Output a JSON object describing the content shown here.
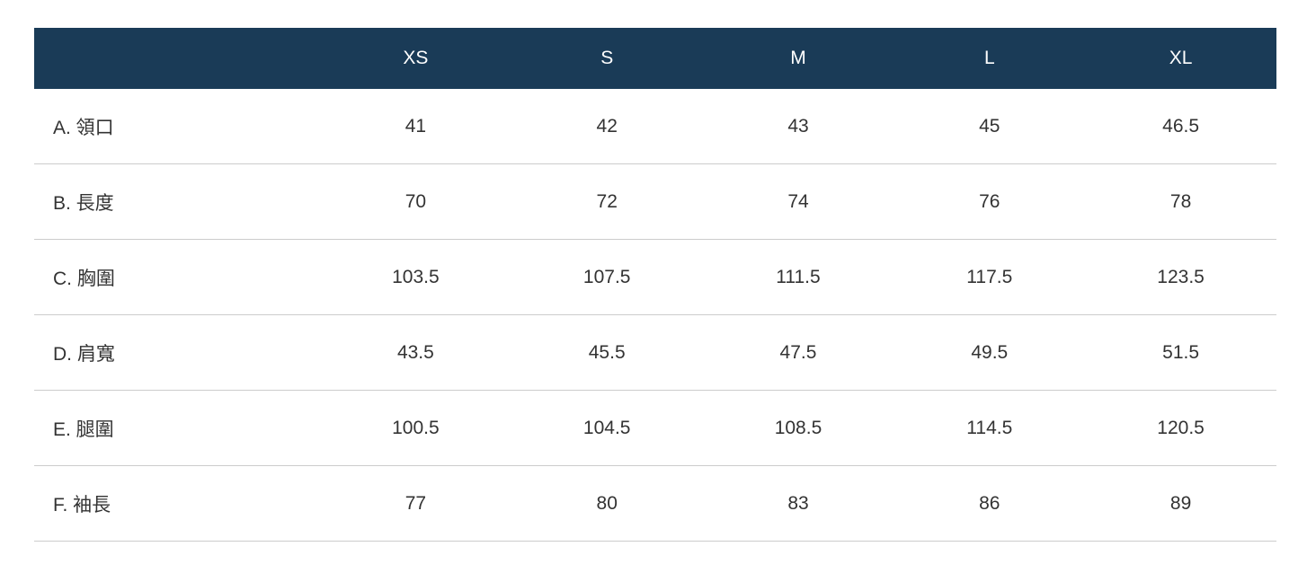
{
  "theme": {
    "header_bg": "#1a3b57",
    "header_text": "#ffffff",
    "body_text": "#333333",
    "divider": "#cccccc",
    "page_bg": "#ffffff"
  },
  "size_chart": {
    "header": {
      "label_column": "",
      "sizes": [
        "XS",
        "S",
        "M",
        "L",
        "XL"
      ]
    },
    "rows": [
      {
        "label": "A. 領口",
        "values": [
          "41",
          "42",
          "43",
          "45",
          "46.5"
        ]
      },
      {
        "label": "B. 長度",
        "values": [
          "70",
          "72",
          "74",
          "76",
          "78"
        ]
      },
      {
        "label": "C. 胸圍",
        "values": [
          "103.5",
          "107.5",
          "111.5",
          "117.5",
          "123.5"
        ]
      },
      {
        "label": "D. 肩寬",
        "values": [
          "43.5",
          "45.5",
          "47.5",
          "49.5",
          "51.5"
        ]
      },
      {
        "label": "E. 腿圍",
        "values": [
          "100.5",
          "104.5",
          "108.5",
          "114.5",
          "120.5"
        ]
      },
      {
        "label": "F. 袖長",
        "values": [
          "77",
          "80",
          "83",
          "86",
          "89"
        ]
      }
    ]
  },
  "chart_data": {
    "type": "table",
    "title": "",
    "columns": [
      "",
      "XS",
      "S",
      "M",
      "L",
      "XL"
    ],
    "rows": [
      [
        "A. 領口",
        41,
        42,
        43,
        45,
        46.5
      ],
      [
        "B. 長度",
        70,
        72,
        74,
        76,
        78
      ],
      [
        "C. 胸圍",
        103.5,
        107.5,
        111.5,
        117.5,
        123.5
      ],
      [
        "D. 肩寬",
        43.5,
        45.5,
        47.5,
        49.5,
        51.5
      ],
      [
        "E. 腿圍",
        100.5,
        104.5,
        108.5,
        114.5,
        120.5
      ],
      [
        "F. 袖長",
        77,
        80,
        83,
        86,
        89
      ]
    ],
    "layout": {
      "header_background": "#1a3b57",
      "header_text_color": "#ffffff",
      "row_divider_color": "#cccccc",
      "first_column_align": "left",
      "value_columns_align": "center"
    }
  }
}
